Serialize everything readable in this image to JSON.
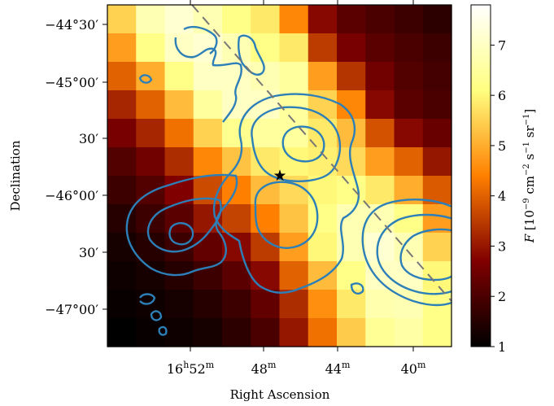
{
  "chart_data": {
    "type": "heatmap",
    "title": "",
    "xlabel": "Right Ascension",
    "ylabel": "Declination",
    "xtick_labels": [
      {
        "text": "16h52m",
        "major": "16",
        "major_unit": "h",
        "minor": "52",
        "minor_unit": "m"
      },
      {
        "text": "48m",
        "major": "48",
        "major_unit": "m"
      },
      {
        "text": "44m",
        "major": "44",
        "major_unit": "m"
      },
      {
        "text": "40m",
        "major": "40",
        "major_unit": "m"
      }
    ],
    "ytick_labels": [
      "−44°30′",
      "−45°00′",
      "30′",
      "−46°00′",
      "30′",
      "−47°00′"
    ],
    "colorbar": {
      "label": "F [10⁻⁹ cm⁻² s⁻¹ sr⁻¹]",
      "label_parts": {
        "var": "F",
        "base": "10",
        "exp1": "−9",
        "cm": "cm",
        "exp2": "−2",
        "s": "s",
        "exp3": "−1",
        "sr": "sr",
        "exp4": "−1"
      },
      "ticks": [
        "1",
        "2",
        "3",
        "4",
        "5",
        "6",
        "7"
      ],
      "range": [
        1,
        7.8
      ],
      "colormap": "afmhot"
    },
    "grid": {
      "cols": 12,
      "rows": 12
    },
    "values": [
      [
        5.5,
        6.8,
        7.2,
        6.8,
        6.2,
        5.8,
        4.5,
        2.8,
        2.2,
        2.0,
        1.8,
        1.6
      ],
      [
        4.8,
        6.2,
        7.0,
        7.2,
        6.8,
        6.2,
        5.8,
        3.5,
        2.6,
        2.2,
        2.0,
        1.8
      ],
      [
        4.0,
        5.0,
        6.2,
        7.0,
        7.0,
        6.8,
        6.5,
        4.8,
        3.4,
        2.5,
        2.1,
        1.9
      ],
      [
        3.2,
        4.0,
        5.2,
        6.5,
        7.0,
        7.0,
        6.5,
        5.5,
        4.5,
        2.8,
        2.2,
        2.0
      ],
      [
        2.6,
        3.2,
        4.2,
        5.5,
        6.3,
        6.5,
        6.5,
        5.8,
        5.2,
        3.8,
        2.8,
        2.4
      ],
      [
        2.1,
        2.5,
        3.3,
        4.5,
        5.3,
        5.8,
        6.0,
        5.9,
        5.6,
        4.8,
        4.0,
        3.0
      ],
      [
        1.8,
        2.1,
        2.7,
        3.7,
        4.4,
        5.2,
        5.6,
        6.0,
        6.2,
        5.8,
        5.0,
        3.9
      ],
      [
        1.5,
        1.8,
        2.2,
        3.0,
        3.6,
        4.4,
        5.3,
        6.2,
        6.8,
        6.8,
        6.2,
        4.8
      ],
      [
        1.3,
        1.5,
        1.8,
        2.3,
        2.8,
        3.5,
        4.8,
        6.0,
        6.8,
        7.2,
        6.8,
        5.5
      ],
      [
        1.2,
        1.3,
        1.5,
        1.8,
        2.2,
        2.8,
        4.0,
        5.2,
        6.2,
        7.0,
        7.0,
        6.0
      ],
      [
        1.1,
        1.2,
        1.3,
        1.5,
        1.8,
        2.3,
        3.3,
        4.6,
        5.8,
        6.7,
        6.8,
        6.2
      ],
      [
        1.0,
        1.1,
        1.2,
        1.3,
        1.6,
        2.0,
        3.0,
        4.2,
        5.4,
        6.4,
        6.6,
        6.2
      ]
    ],
    "star_marker": "★"
  }
}
